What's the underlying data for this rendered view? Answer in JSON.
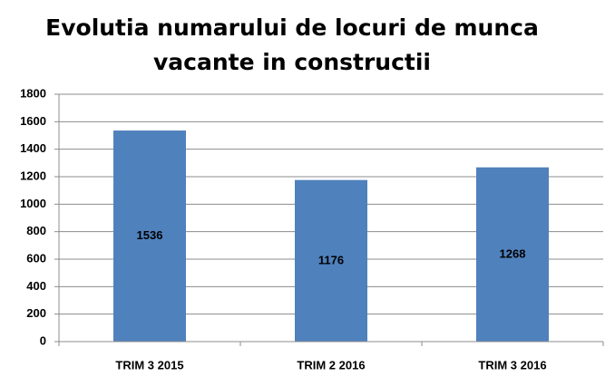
{
  "chart_data": {
    "type": "bar",
    "title": [
      "Evolutia numarului de locuri de munca",
      "vacante in constructii"
    ],
    "categories": [
      "TRIM 3 2015",
      "TRIM 2 2016",
      "TRIM 3 2016"
    ],
    "values": [
      1536,
      1176,
      1268
    ],
    "color": "#4f81bd",
    "ylim": [
      0,
      1800
    ],
    "yticks": [
      0,
      200,
      400,
      600,
      800,
      1000,
      1200,
      1400,
      1600,
      1800
    ],
    "grid": true
  }
}
